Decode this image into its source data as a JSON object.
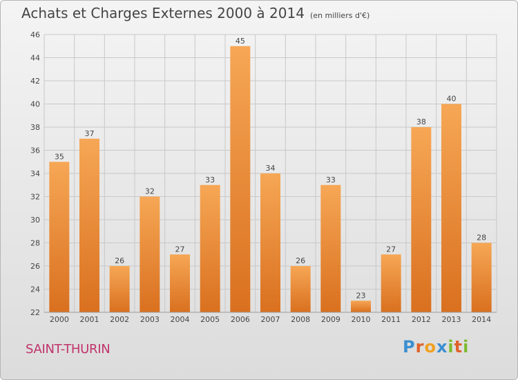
{
  "title": "Achats et Charges Externes 2000 à 2014",
  "unit_label": "(en milliers d'€)",
  "commune": "SAINT-THURIN",
  "logo": {
    "text": "Proxiti",
    "letters": [
      {
        "char": "P",
        "color": "#3a8fd1"
      },
      {
        "char": "r",
        "color": "#e0622a"
      },
      {
        "char": "o",
        "color": "#f0a020"
      },
      {
        "char": "x",
        "color": "#3a8fd1"
      },
      {
        "char": "i",
        "color": "#7cba2e"
      },
      {
        "char": "t",
        "color": "#e0622a"
      },
      {
        "char": "i",
        "color": "#7cba2e"
      }
    ]
  },
  "colors": {
    "bar_light": "#f6a755",
    "bar_dark": "#d9701f",
    "grid": "#c8c8c8",
    "text": "#444444"
  },
  "chart_data": {
    "type": "bar",
    "categories": [
      "2000",
      "2001",
      "2002",
      "2003",
      "2004",
      "2005",
      "2006",
      "2007",
      "2008",
      "2009",
      "2010",
      "2011",
      "2012",
      "2013",
      "2014"
    ],
    "values": [
      35,
      37,
      26,
      32,
      27,
      33,
      45,
      34,
      26,
      33,
      23,
      27,
      38,
      40,
      28
    ],
    "ylim": [
      22,
      46
    ],
    "yticks": [
      22,
      24,
      26,
      28,
      30,
      32,
      34,
      36,
      38,
      40,
      42,
      44,
      46
    ],
    "grid": true,
    "data_labels": true
  }
}
